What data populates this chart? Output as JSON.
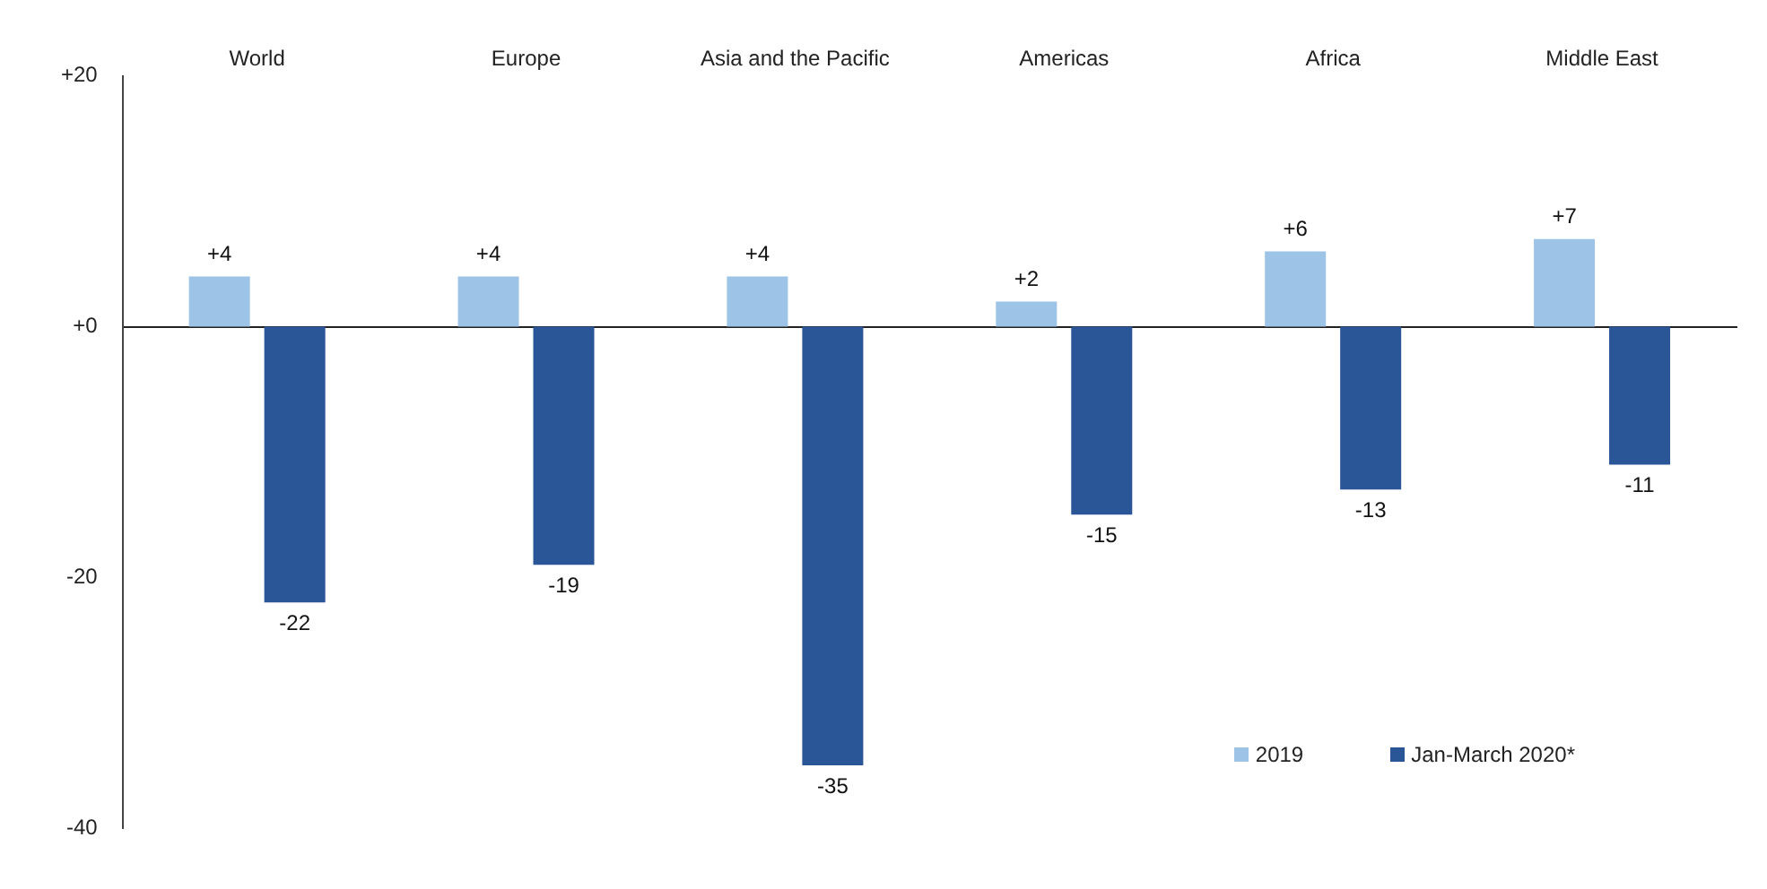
{
  "chart_data": {
    "type": "bar",
    "categories": [
      "World",
      "Europe",
      "Asia and the Pacific",
      "Americas",
      "Africa",
      "Middle East"
    ],
    "series": [
      {
        "name": "2019",
        "color": "#9dc3e6",
        "values": [
          4,
          4,
          4,
          2,
          6,
          7
        ],
        "value_labels": [
          "+4",
          "+4",
          "+4",
          "+2",
          "+6",
          "+7"
        ]
      },
      {
        "name": "Jan-March 2020*",
        "color": "#2a5597",
        "values": [
          -22,
          -19,
          -35,
          -15,
          -13,
          -11
        ],
        "value_labels": [
          "-22",
          "-19",
          "-35",
          "-15",
          "-13",
          "-11"
        ]
      }
    ],
    "ylim": [
      -40,
      20
    ],
    "yticks": [
      {
        "value": 20,
        "label": "+20"
      },
      {
        "value": 0,
        "label": "+0"
      },
      -20,
      -40
    ],
    "legend": "bottom right"
  }
}
